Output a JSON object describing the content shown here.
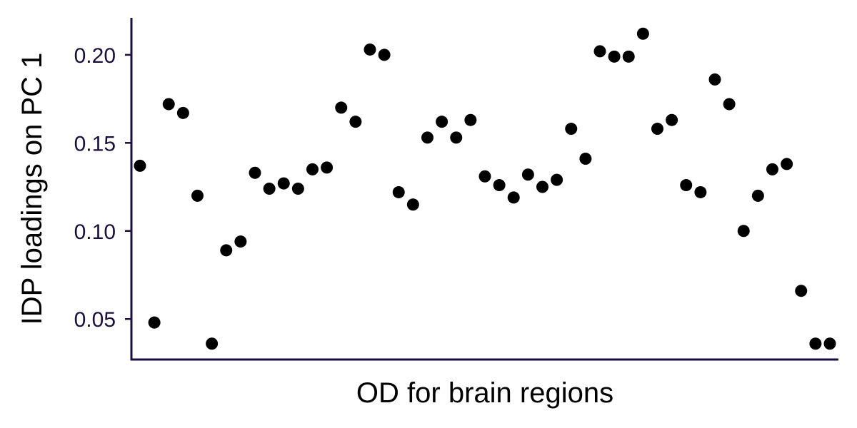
{
  "chart_data": {
    "type": "scatter",
    "title": "",
    "xlabel": "OD for brain regions",
    "ylabel": "IDP loadings on PC 1",
    "ylim": [
      0.027,
      0.221
    ],
    "yticks": [
      0.05,
      0.1,
      0.15,
      0.2
    ],
    "ytick_labels": [
      "0.05",
      "0.10",
      "0.15",
      "0.20"
    ],
    "x_tick_labels_shown": false,
    "grid": false,
    "legend": "none",
    "colors": {
      "points": "#000000",
      "axis": "#1a0f3d",
      "tick_text": "#1a0f3d"
    },
    "x": [
      1,
      2,
      3,
      4,
      5,
      6,
      7,
      8,
      9,
      10,
      11,
      12,
      13,
      14,
      15,
      16,
      17,
      18,
      19,
      20,
      21,
      22,
      23,
      24,
      25,
      26,
      27,
      28,
      29,
      30,
      31,
      32,
      33,
      34,
      35,
      36,
      37,
      38,
      39,
      40,
      41,
      42,
      43,
      44,
      45,
      46,
      47,
      48,
      49
    ],
    "y": [
      0.137,
      0.048,
      0.172,
      0.167,
      0.12,
      0.036,
      0.089,
      0.094,
      0.133,
      0.124,
      0.127,
      0.124,
      0.135,
      0.136,
      0.17,
      0.162,
      0.203,
      0.2,
      0.122,
      0.115,
      0.153,
      0.162,
      0.153,
      0.163,
      0.131,
      0.126,
      0.119,
      0.132,
      0.125,
      0.129,
      0.158,
      0.141,
      0.202,
      0.199,
      0.199,
      0.212,
      0.158,
      0.163,
      0.126,
      0.122,
      0.186,
      0.172,
      0.1,
      0.12,
      0.135,
      0.138,
      0.066,
      0.036,
      0.036
    ]
  }
}
